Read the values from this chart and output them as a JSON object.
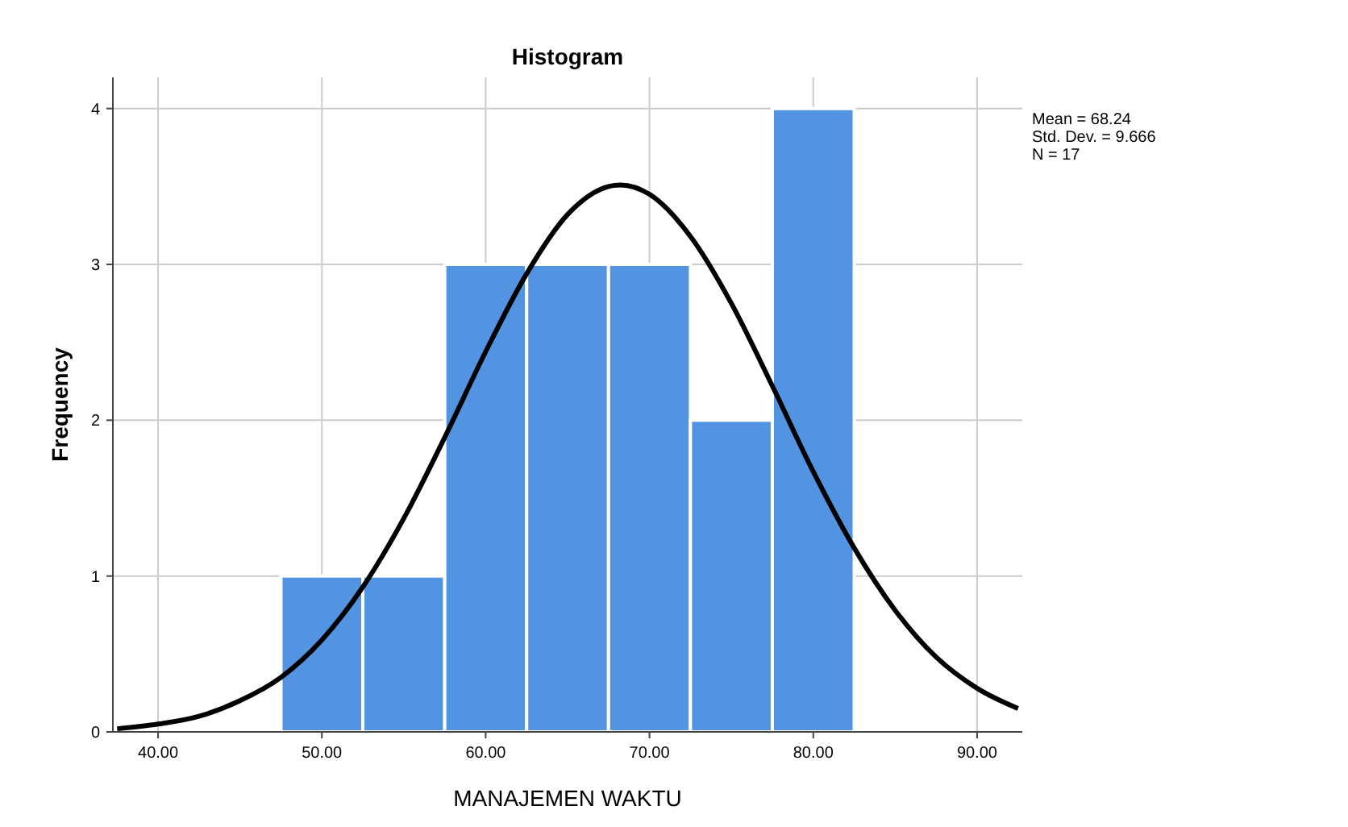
{
  "chart_data": {
    "type": "histogram",
    "title": "Histogram",
    "xlabel": "MANAJEMEN WAKTU",
    "ylabel": "Frequency",
    "bins": [
      47.5,
      52.5,
      57.5,
      62.5,
      67.5,
      72.5,
      77.5,
      82.5
    ],
    "values": [
      1,
      1,
      3,
      3,
      3,
      2,
      4
    ],
    "color": "#5294e2",
    "series": [
      {
        "type": "line",
        "color": "#000000",
        "x": [
          37.5,
          40,
          42.5,
          45,
          47.5,
          50,
          52.5,
          55,
          57.5,
          60,
          62.5,
          65,
          67.5,
          68.24,
          70,
          72.5,
          75,
          77.5,
          80,
          82.5,
          85,
          87.5,
          90,
          92.5
        ],
        "values": [
          0.02,
          0.05,
          0.1,
          0.2,
          0.35,
          0.59,
          0.93,
          1.37,
          1.89,
          2.44,
          2.94,
          3.32,
          3.5,
          3.51,
          3.45,
          3.18,
          2.75,
          2.22,
          1.67,
          1.18,
          0.78,
          0.48,
          0.28,
          0.15
        ]
      }
    ],
    "xlim": [
      37.24,
      92.76
    ],
    "xticks": [
      {
        "value": 40,
        "label": "40.00"
      },
      {
        "value": 50,
        "label": "50.00"
      },
      {
        "value": 60,
        "label": "60.00"
      },
      {
        "value": 70,
        "label": "70.00"
      },
      {
        "value": 80,
        "label": "80.00"
      },
      {
        "value": 90,
        "label": "90.00"
      }
    ],
    "ylim": [
      0,
      4.2
    ],
    "yticks": [
      0,
      1,
      2,
      3,
      4
    ],
    "grid": true,
    "line_style": "solid",
    "marker": "none",
    "annotations": [
      "Mean = 68.24",
      "Std. Dev. = 9.666",
      "N = 17"
    ]
  }
}
